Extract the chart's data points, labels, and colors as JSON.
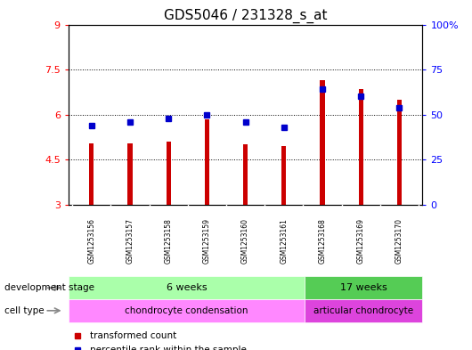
{
  "title": "GDS5046 / 231328_s_at",
  "samples": [
    "GSM1253156",
    "GSM1253157",
    "GSM1253158",
    "GSM1253159",
    "GSM1253160",
    "GSM1253161",
    "GSM1253168",
    "GSM1253169",
    "GSM1253170"
  ],
  "transformed_count": [
    5.05,
    5.05,
    5.1,
    5.85,
    5.0,
    4.95,
    7.15,
    6.85,
    6.5
  ],
  "percentile_rank": [
    44,
    46,
    48,
    50,
    46,
    43,
    64,
    60,
    54
  ],
  "y_min": 3,
  "y_max": 9,
  "y_ticks": [
    3,
    4.5,
    6,
    7.5,
    9
  ],
  "y_tick_labels": [
    "3",
    "4.5",
    "6",
    "7.5",
    "9"
  ],
  "right_y_ticks": [
    0,
    25,
    50,
    75,
    100
  ],
  "right_y_tick_labels": [
    "0",
    "25",
    "50",
    "75",
    "100%"
  ],
  "bar_color": "#cc0000",
  "dot_color": "#0000cc",
  "background_color": "#ffffff",
  "sample_bg_color": "#cccccc",
  "dev_6wk_color": "#aaffaa",
  "dev_17wk_color": "#55cc55",
  "cell_condensation_color": "#ff88ff",
  "cell_articular_color": "#dd44dd",
  "row_label_dev": "development stage",
  "row_label_cell": "cell type",
  "legend_items": [
    "transformed count",
    "percentile rank within the sample"
  ],
  "bar_width": 0.12,
  "baseline": 3,
  "n_6wk": 6,
  "n_17wk": 3
}
